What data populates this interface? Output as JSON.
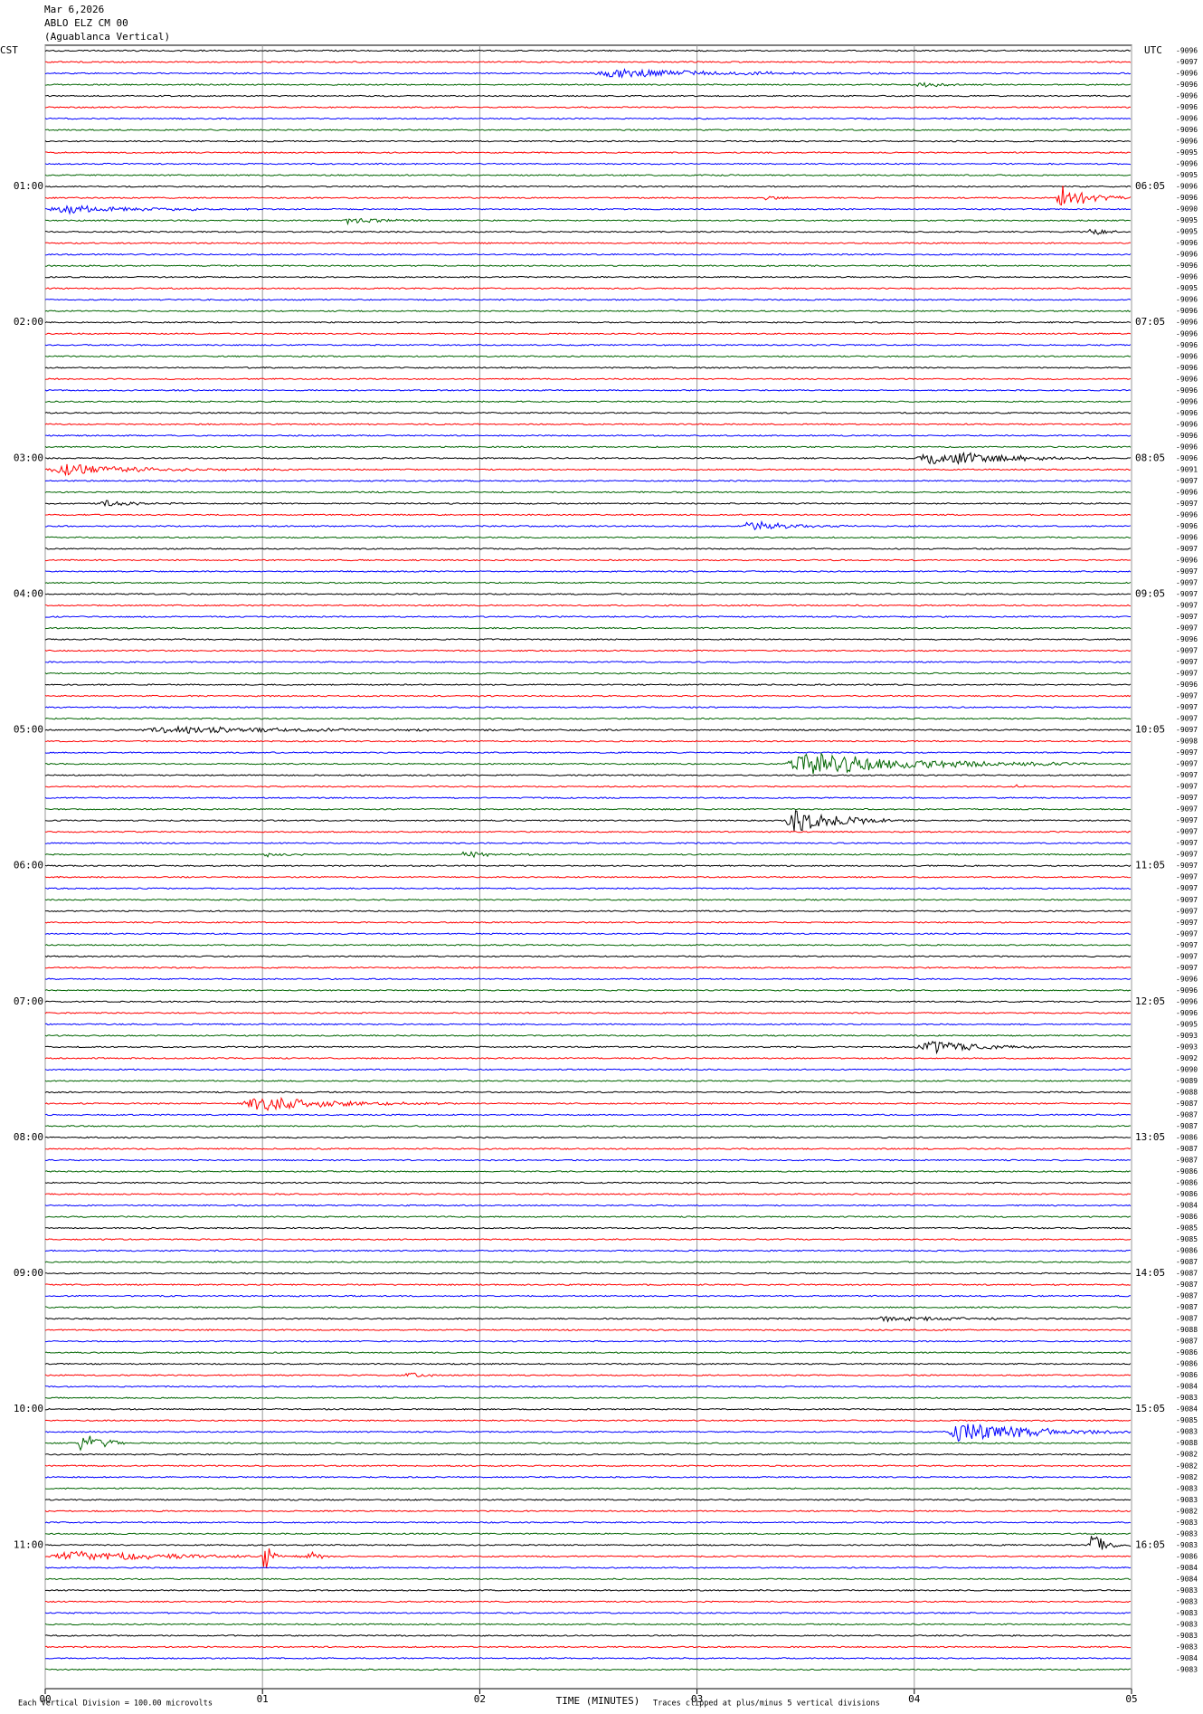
{
  "header": {
    "date": "Mar 6,2026",
    "station": "ABLO ELZ CM 00",
    "location": "(Aguablanca Vertical)"
  },
  "left_timezone": "CST",
  "right_timezone": "UTC",
  "chart_data": {
    "type": "helicorder",
    "x_label": "TIME (MINUTES)",
    "xlim": [
      0,
      5
    ],
    "xticks": [
      {
        "value": 0,
        "label": "00"
      },
      {
        "value": 1,
        "label": "01"
      },
      {
        "value": 2,
        "label": "02"
      },
      {
        "value": 3,
        "label": "03"
      },
      {
        "value": 4,
        "label": "04"
      },
      {
        "value": 5,
        "label": "05"
      }
    ],
    "left_hour_labels": [
      "01:00",
      "02:00",
      "03:00",
      "04:00",
      "05:00",
      "06:00",
      "07:00",
      "08:00",
      "09:00",
      "10:00",
      "11:00"
    ],
    "right_hour_labels": [
      "06:05",
      "07:05",
      "08:05",
      "09:05",
      "10:05",
      "11:05",
      "12:05",
      "13:05",
      "14:05",
      "15:05",
      "16:05"
    ],
    "trace_colors": [
      "#000000",
      "#ff0000",
      "#0000ff",
      "#006400"
    ],
    "trace_offsets": [
      -9096,
      -9097,
      -9096,
      -9096,
      -9096,
      -9096,
      -9096,
      -9096,
      -9096,
      -9095,
      -9096,
      -9095,
      -9096,
      -9096,
      -9090,
      -9095,
      -9095,
      -9096,
      -9096,
      -9096,
      -9096,
      -9095,
      -9096,
      -9096,
      -9096,
      -9096,
      -9096,
      -9096,
      -9096,
      -9096,
      -9096,
      -9096,
      -9096,
      -9096,
      -9096,
      -9096,
      -9096,
      -9091,
      -9097,
      -9096,
      -9097,
      -9096,
      -9096,
      -9096,
      -9097,
      -9096,
      -9097,
      -9097,
      -9097,
      -9097,
      -9097,
      -9097,
      -9096,
      -9097,
      -9097,
      -9097,
      -9096,
      -9097,
      -9097,
      -9097,
      -9097,
      -9098,
      -9097,
      -9097,
      -9097,
      -9097,
      -9097,
      -9097,
      -9097,
      -9097,
      -9097,
      -9097,
      -9097,
      -9097,
      -9097,
      -9097,
      -9097,
      -9097,
      -9097,
      -9097,
      -9097,
      -9097,
      -9096,
      -9096,
      -9096,
      -9096,
      -9095,
      -9093,
      -9093,
      -9092,
      -9090,
      -9089,
      -9088,
      -9087,
      -9087,
      -9087,
      -9086,
      -9087,
      -9087,
      -9086,
      -9086,
      -9086,
      -9084,
      -9086,
      -9085,
      -9085,
      -9086,
      -9087,
      -9087,
      -9087,
      -9087,
      -9087,
      -9087,
      -9088,
      -9087,
      -9086,
      -9086,
      -9086,
      -9084,
      -9083,
      -9084,
      -9085,
      -9083,
      -9088,
      -9082,
      -9082,
      -9082,
      -9083,
      -9083,
      -9082,
      -9083,
      -9083,
      -9083,
      -9086,
      -9084,
      -9084,
      -9083,
      -9083,
      -9083,
      -9083,
      -9083,
      -9083,
      -9084,
      -9083
    ]
  },
  "footer": {
    "scale_note": "Each Vertical Division =  100.00 microvolts",
    "clip_note": "Traces clipped at plus/minus 5 vertical divisions"
  }
}
